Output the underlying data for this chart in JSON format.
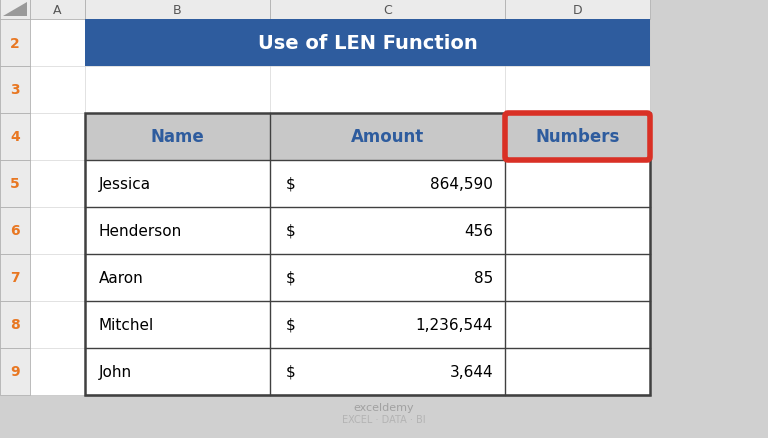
{
  "title": "Use of LEN Function",
  "title_bg": "#2E5C9E",
  "title_color": "#FFFFFF",
  "col_headers": [
    "Name",
    "Amount",
    "Numbers"
  ],
  "header_bg": "#C8C8C8",
  "header_color": "#2E5C9E",
  "rows": [
    [
      "Jessica",
      "$",
      "864,590",
      ""
    ],
    [
      "Henderson",
      "$",
      "456",
      ""
    ],
    [
      "Aaron",
      "$",
      "85",
      ""
    ],
    [
      "Mitchel",
      "$",
      "1,236,544",
      ""
    ],
    [
      "John",
      "$",
      "3,644",
      ""
    ]
  ],
  "row_bg": "#FFFFFF",
  "row_color": "#000000",
  "excel_bg": "#D0D0D0",
  "col_letters": [
    "A",
    "B",
    "C",
    "D"
  ],
  "row_numbers": [
    "2",
    "3",
    "4",
    "5",
    "6",
    "7",
    "8",
    "9"
  ],
  "highlight_color": "#D93025",
  "watermark_line1": "exceldemy",
  "watermark_line2": "EXCEL · DATA · BI",
  "header_cell_color": "#E87722",
  "row_num_color": "#E87722"
}
